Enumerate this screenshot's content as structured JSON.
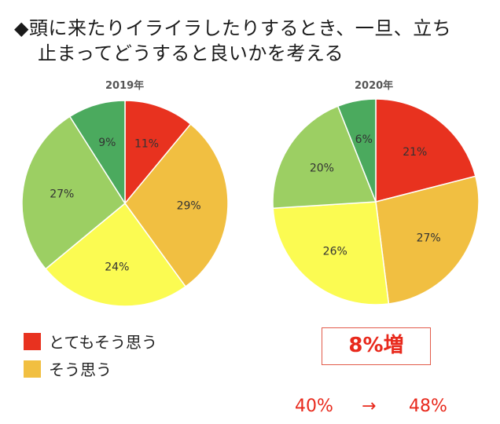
{
  "title": {
    "line1": "◆頭に来たりイライラしたりするとき、一旦、立ち",
    "line2": "止まってどうすると良いかを考える"
  },
  "colors": {
    "strongly_agree": "#e8321f",
    "agree": "#f1bf41",
    "somewhat": "#fbfb52",
    "not_much": "#9ccf63",
    "not_at_all": "#4baa5e"
  },
  "chart_data": [
    {
      "type": "pie",
      "title": "2019年",
      "values": [
        11,
        29,
        24,
        27,
        9
      ],
      "labels": [
        "11%",
        "29%",
        "24%",
        "27%",
        "9%"
      ],
      "colors": [
        "#e8321f",
        "#f1bf41",
        "#fbfb52",
        "#9ccf63",
        "#4baa5e"
      ]
    },
    {
      "type": "pie",
      "title": "2020年",
      "values": [
        21,
        27,
        26,
        20,
        6
      ],
      "labels": [
        "21%",
        "27%",
        "26%",
        "20%",
        "6%"
      ],
      "colors": [
        "#e8321f",
        "#f1bf41",
        "#fbfb52",
        "#9ccf63",
        "#4baa5e"
      ]
    }
  ],
  "legend": [
    {
      "label": "とてもそう思う",
      "color": "#e8321f"
    },
    {
      "label": "そう思う",
      "color": "#f1bf41"
    }
  ],
  "summary": {
    "increase_label": "8%増",
    "from": "40%",
    "arrow": "→",
    "to": "48%"
  }
}
